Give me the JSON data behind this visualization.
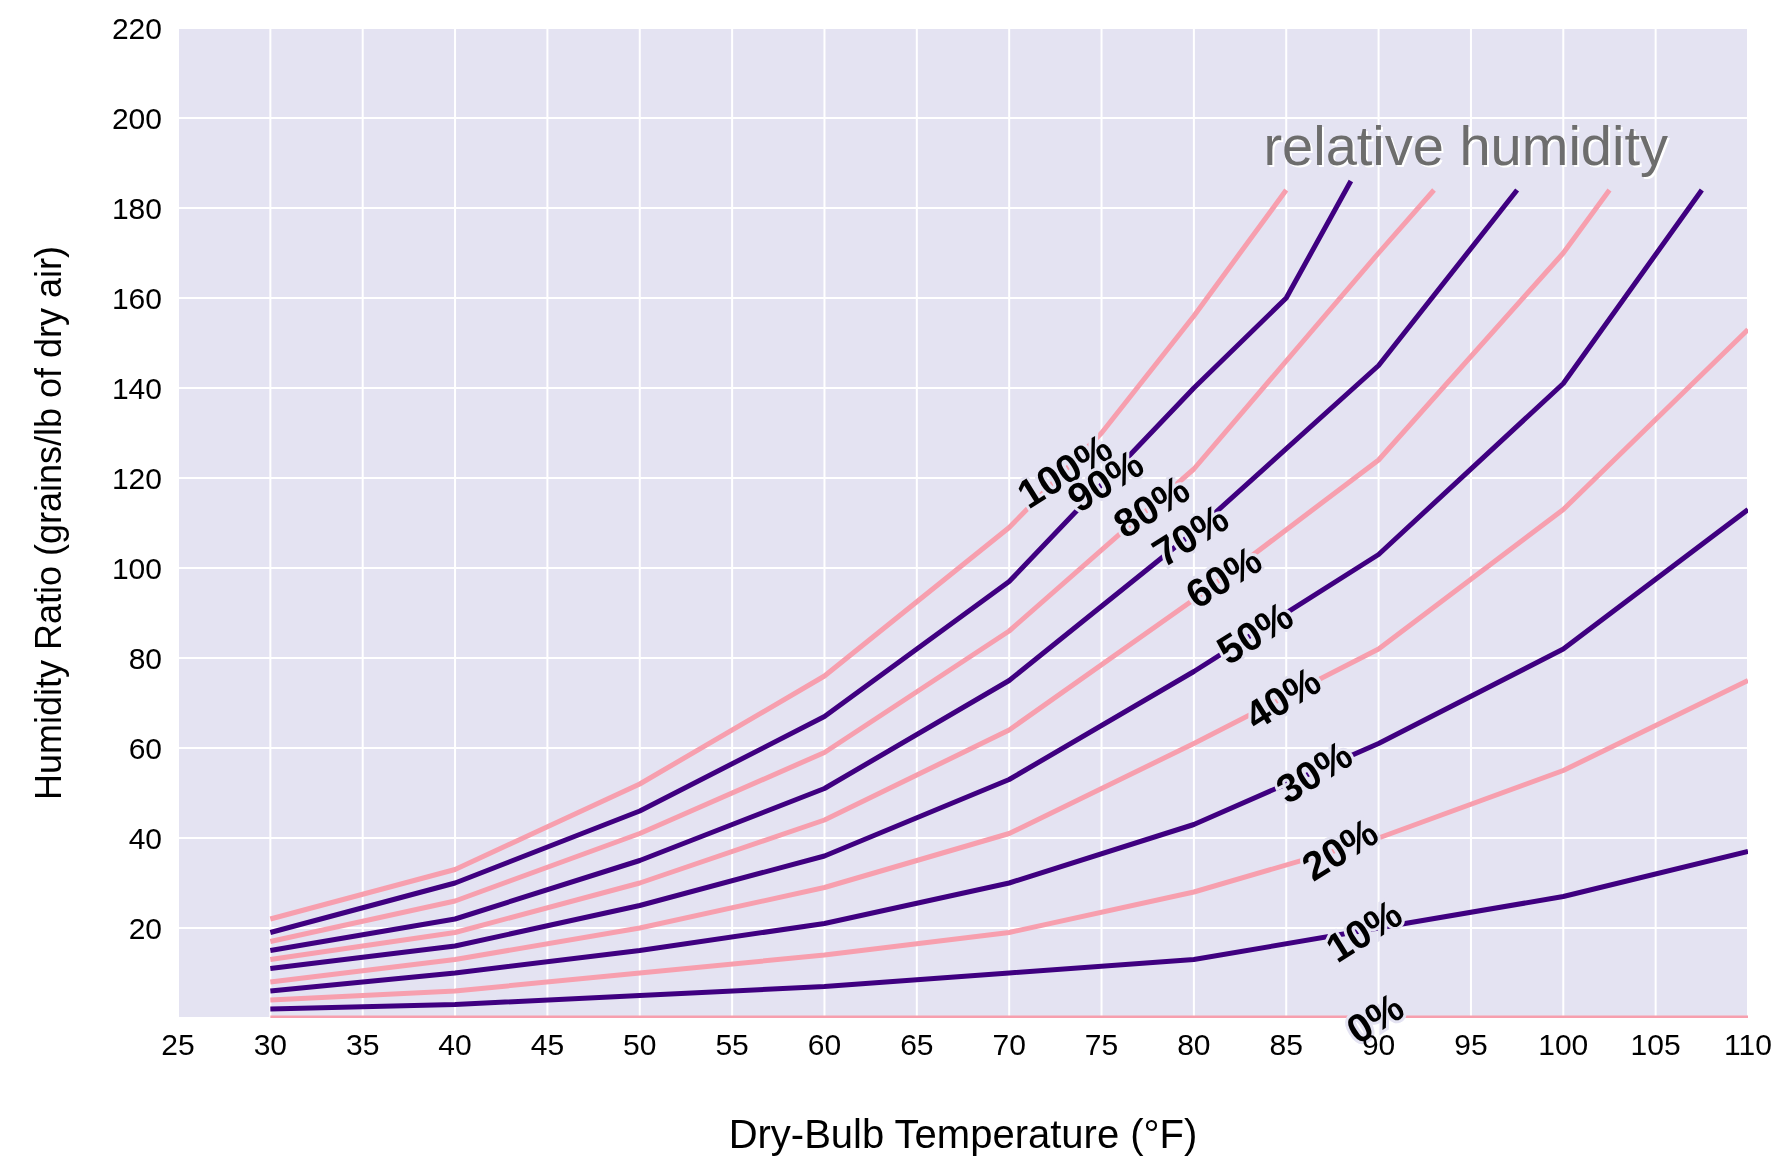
{
  "chart_data": {
    "type": "line",
    "xlabel": "Dry-Bulb Temperature (°F)",
    "ylabel": "Humidity Ratio (grains/lb of dry air)",
    "xlim": [
      25,
      110
    ],
    "xticks": [
      25,
      30,
      35,
      40,
      45,
      50,
      55,
      60,
      65,
      70,
      75,
      80,
      85,
      90,
      95,
      100,
      105,
      110
    ],
    "ylim": [
      0,
      220
    ],
    "yticks": [
      {
        "value": 0,
        "label": null
      },
      20,
      40,
      60,
      80,
      100,
      120,
      140,
      160,
      180,
      200,
      220
    ],
    "grid": true,
    "marker": "none",
    "line_style": "solid",
    "series": [
      {
        "color": "#f79fae",
        "x": [
          30,
          40,
          50,
          60,
          70,
          75,
          80,
          85
        ],
        "values": [
          22,
          33,
          52,
          76,
          109,
          130,
          156,
          184
        ]
      },
      {
        "color": "#3f0080",
        "x": [
          30,
          40,
          50,
          60,
          70,
          80,
          85,
          88.5
        ],
        "values": [
          19,
          30,
          46,
          67,
          97,
          140,
          160,
          186
        ]
      },
      {
        "color": "#f79fae",
        "x": [
          30,
          40,
          50,
          60,
          70,
          80,
          90,
          93
        ],
        "values": [
          17,
          26,
          41,
          59,
          86,
          122,
          170,
          184
        ]
      },
      {
        "color": "#3f0080",
        "x": [
          30,
          40,
          50,
          60,
          70,
          80,
          90,
          97.5
        ],
        "values": [
          15,
          22,
          35,
          51,
          75,
          108,
          145,
          184
        ]
      },
      {
        "color": "#f79fae",
        "x": [
          30,
          40,
          50,
          60,
          70,
          80,
          90,
          100,
          102.5
        ],
        "values": [
          13,
          19,
          30,
          44,
          64,
          93,
          124,
          170,
          184
        ]
      },
      {
        "color": "#3f0080",
        "x": [
          30,
          40,
          50,
          60,
          70,
          80,
          90,
          100,
          107.5
        ],
        "values": [
          11,
          16,
          25,
          36,
          53,
          77,
          103,
          141,
          184
        ]
      },
      {
        "color": "#f79fae",
        "x": [
          30,
          40,
          50,
          60,
          70,
          80,
          90,
          100,
          110
        ],
        "values": [
          8,
          13,
          20,
          29,
          41,
          61,
          82,
          113,
          153
        ]
      },
      {
        "color": "#3f0080",
        "x": [
          30,
          40,
          50,
          60,
          70,
          80,
          90,
          100,
          110
        ],
        "values": [
          6,
          10,
          15,
          21,
          30,
          43,
          61,
          82,
          113
        ]
      },
      {
        "color": "#f79fae",
        "x": [
          30,
          40,
          50,
          60,
          70,
          80,
          90,
          100,
          110
        ],
        "values": [
          4,
          6,
          10,
          14,
          19,
          28,
          40,
          55,
          75
        ]
      },
      {
        "color": "#3f0080",
        "x": [
          30,
          40,
          50,
          60,
          70,
          80,
          90,
          100,
          110
        ],
        "values": [
          2,
          3,
          5,
          7,
          10,
          13,
          20,
          27,
          37
        ]
      },
      {
        "color": "#f79fae",
        "x": [
          30,
          110
        ],
        "values": [
          0,
          0
        ]
      }
    ],
    "annotations": [
      "relative humidity",
      {
        "text": "100%",
        "x": 73,
        "y": 121.6
      },
      {
        "text": "90%",
        "x": 75.2,
        "y": 119.4
      },
      {
        "text": "80%",
        "x": 77.7,
        "y": 113.7
      },
      {
        "text": "70%",
        "x": 79.8,
        "y": 107.3
      },
      {
        "text": "60%",
        "x": 81.6,
        "y": 98
      },
      {
        "text": "50%",
        "x": 83.3,
        "y": 85.6
      },
      {
        "text": "40%",
        "x": 84.8,
        "y": 71.1
      },
      {
        "text": "30%",
        "x": 86.5,
        "y": 54.7
      },
      {
        "text": "20%",
        "x": 87.9,
        "y": 37.5
      },
      {
        "text": "10%",
        "x": 89.2,
        "y": 19.4
      },
      {
        "text": "0%",
        "x": 89.8,
        "y": 0
      }
    ]
  }
}
